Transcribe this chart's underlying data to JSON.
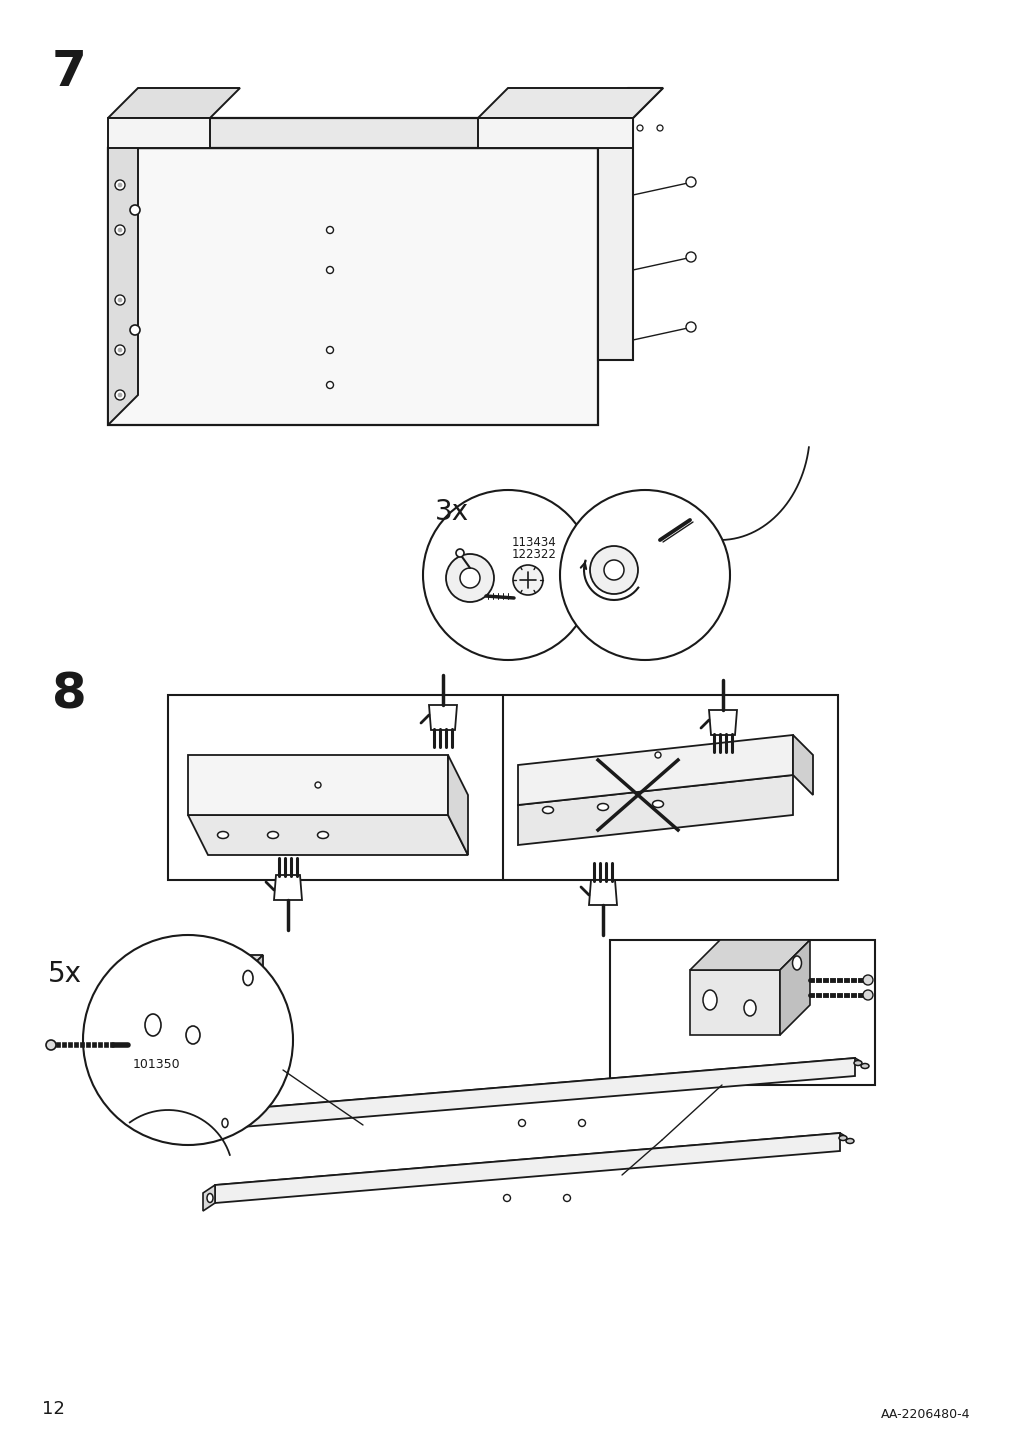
{
  "page_number": "12",
  "doc_id": "AA-2206480-4",
  "background_color": "#ffffff",
  "line_color": "#1a1a1a",
  "step7_label": "7",
  "step8_label": "8",
  "qty_3x": "3x",
  "qty_5x": "5x",
  "part_code_1": "113434\n122322",
  "part_code_2": "101350",
  "figsize": [
    10.12,
    14.32
  ],
  "dpi": 100
}
